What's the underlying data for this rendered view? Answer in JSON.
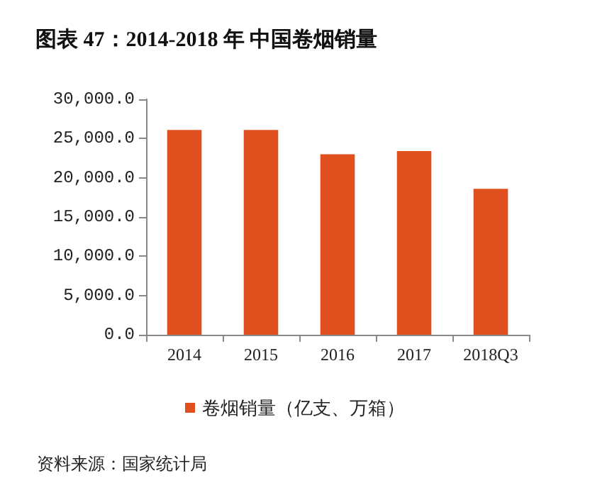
{
  "chart_data": {
    "type": "bar",
    "title": "图表 47：2014-2018 年 中国卷烟销量",
    "categories": [
      "2014",
      "2015",
      "2016",
      "2017",
      "2018Q3"
    ],
    "series": [
      {
        "name": "卷烟销量（亿支、万箱）",
        "color": "#e0501e",
        "values": [
          26100,
          26100,
          23000,
          23400,
          18600
        ]
      }
    ],
    "ylim": [
      0,
      30000
    ],
    "yticks": [
      {
        "value": 0,
        "label": "0.0"
      },
      {
        "value": 5000,
        "label": "5,000.0"
      },
      {
        "value": 10000,
        "label": "10,000.0"
      },
      {
        "value": 15000,
        "label": "15,000.0"
      },
      {
        "value": 20000,
        "label": "20,000.0"
      },
      {
        "value": 25000,
        "label": "25,000.0"
      },
      {
        "value": 30000,
        "label": "30,000.0"
      }
    ],
    "grid": false,
    "legend": "bottom",
    "annotations": [
      "资料来源：国家统计局"
    ]
  }
}
